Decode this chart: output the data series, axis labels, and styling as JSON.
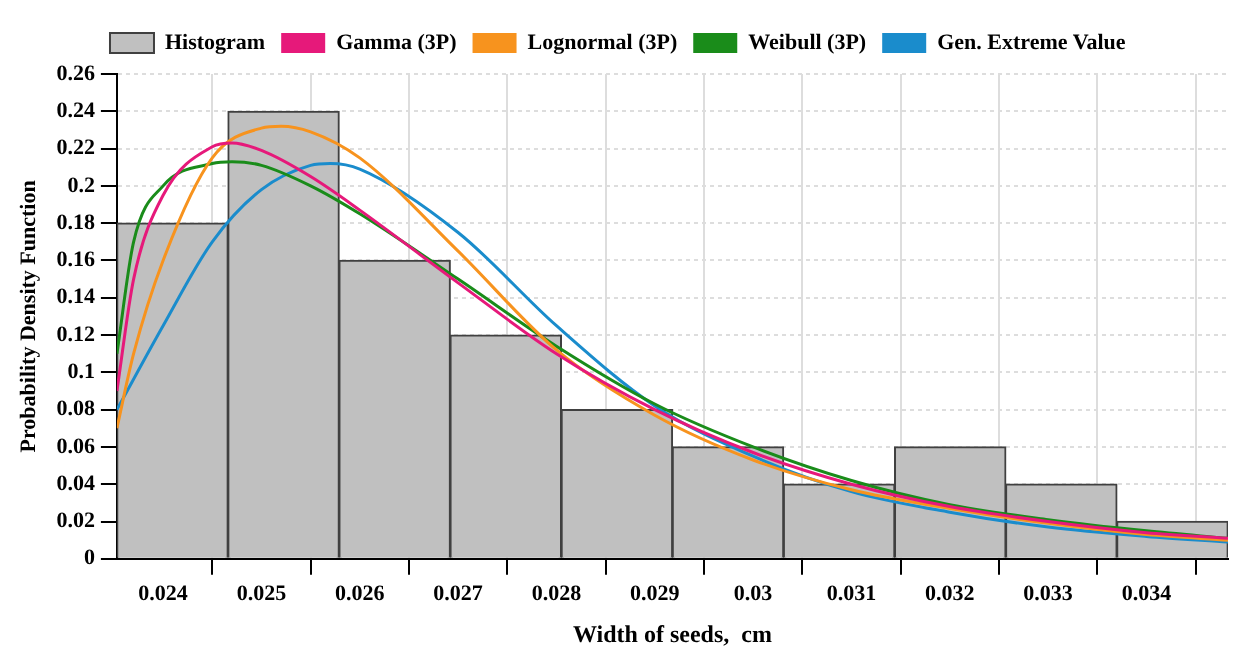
{
  "chart_data": {
    "type": "histogram",
    "xlabel": "Width of seeds,  cm",
    "ylabel": "Probability Density Function",
    "bins": [
      0.02353,
      0.02466,
      0.02579,
      0.02692,
      0.02805,
      0.02918,
      0.03031,
      0.03144,
      0.03257,
      0.0337,
      0.03483
    ],
    "series": [
      {
        "name": "Histogram",
        "color": "#c0c0c0",
        "values": [
          0.18,
          0.24,
          0.16,
          0.12,
          0.08,
          0.06,
          0.04,
          0.06,
          0.04,
          0.02
        ]
      },
      {
        "type": "line",
        "name": "Gamma (3P)",
        "color": "#e6197a",
        "x": [
          0.02353,
          0.0237,
          0.024,
          0.0245,
          0.0247,
          0.025,
          0.0255,
          0.026,
          0.027,
          0.028,
          0.029,
          0.03,
          0.031,
          0.032,
          0.033,
          0.034,
          0.03483
        ],
        "values": [
          0.09,
          0.15,
          0.195,
          0.221,
          0.223,
          0.219,
          0.205,
          0.187,
          0.148,
          0.11,
          0.08,
          0.057,
          0.04,
          0.028,
          0.02,
          0.014,
          0.011
        ]
      },
      {
        "type": "line",
        "name": "Lognormal (3P)",
        "color": "#f7931e",
        "x": [
          0.02353,
          0.0237,
          0.024,
          0.0245,
          0.025,
          0.0252,
          0.0255,
          0.026,
          0.027,
          0.028,
          0.029,
          0.03,
          0.031,
          0.032,
          0.033,
          0.034,
          0.03483
        ],
        "values": [
          0.07,
          0.11,
          0.16,
          0.215,
          0.231,
          0.232,
          0.229,
          0.215,
          0.165,
          0.112,
          0.077,
          0.053,
          0.037,
          0.027,
          0.019,
          0.013,
          0.01
        ]
      },
      {
        "type": "line",
        "name": "Weibull (3P)",
        "color": "#1a8c1a",
        "x": [
          0.02353,
          0.0237,
          0.024,
          0.0245,
          0.0247,
          0.025,
          0.0255,
          0.026,
          0.027,
          0.028,
          0.029,
          0.03,
          0.031,
          0.032,
          0.033,
          0.034,
          0.03483
        ],
        "values": [
          0.11,
          0.17,
          0.2,
          0.212,
          0.213,
          0.211,
          0.2,
          0.185,
          0.15,
          0.114,
          0.083,
          0.06,
          0.042,
          0.029,
          0.021,
          0.015,
          0.011
        ]
      },
      {
        "type": "line",
        "name": "Gen. Extreme Value",
        "color": "#1a8ccc",
        "x": [
          0.02353,
          0.024,
          0.0245,
          0.025,
          0.0255,
          0.0257,
          0.026,
          0.027,
          0.028,
          0.029,
          0.03,
          0.031,
          0.032,
          0.033,
          0.034,
          0.03483
        ],
        "values": [
          0.08,
          0.125,
          0.17,
          0.198,
          0.211,
          0.212,
          0.209,
          0.175,
          0.125,
          0.082,
          0.055,
          0.036,
          0.025,
          0.017,
          0.012,
          0.009
        ]
      }
    ],
    "xlim": [
      0.02353,
      0.03483
    ],
    "xticks": [
      0.024,
      0.025,
      0.026,
      0.027,
      0.028,
      0.029,
      0.03,
      0.031,
      0.032,
      0.033,
      0.034
    ],
    "ylim": [
      0,
      0.26
    ],
    "yticks": [
      0,
      0.02,
      0.04,
      0.06,
      0.08,
      0.1,
      0.12,
      0.14,
      0.16,
      0.18,
      0.2,
      0.22,
      0.24,
      0.26
    ],
    "grid": true,
    "legend": "top"
  }
}
